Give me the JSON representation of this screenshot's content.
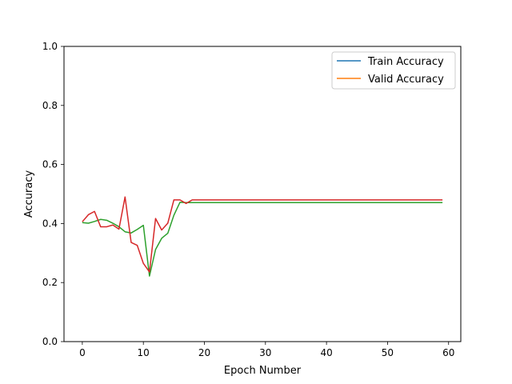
{
  "chart_data": {
    "type": "line",
    "title": "",
    "xlabel": "Epoch Number",
    "ylabel": "Accuracy",
    "xlim": [
      -3,
      62
    ],
    "ylim": [
      0.0,
      1.0
    ],
    "xticks": [
      0,
      10,
      20,
      30,
      40,
      50,
      60
    ],
    "yticks": [
      0.0,
      0.2,
      0.4,
      0.6,
      0.8,
      1.0
    ],
    "xtick_labels": [
      "0",
      "10",
      "20",
      "30",
      "40",
      "50",
      "60"
    ],
    "ytick_labels": [
      "0.0",
      "0.2",
      "0.4",
      "0.6",
      "0.8",
      "1.0"
    ],
    "grid": false,
    "legend_position": "top-right",
    "legend": [
      {
        "name": "Train Accuracy",
        "color": "#1f77b4"
      },
      {
        "name": "Valid Accuracy",
        "color": "#ff7f0e"
      }
    ],
    "series": [
      {
        "color": "#2ca02c",
        "x": [
          0,
          1,
          2,
          3,
          4,
          5,
          6,
          7,
          8,
          9,
          10,
          11,
          12,
          13,
          14,
          15,
          16,
          17,
          18,
          59
        ],
        "values": [
          0.403,
          0.401,
          0.407,
          0.414,
          0.411,
          0.401,
          0.389,
          0.372,
          0.368,
          0.38,
          0.394,
          0.222,
          0.312,
          0.35,
          0.367,
          0.428,
          0.472,
          0.471,
          0.471,
          0.471
        ]
      },
      {
        "color": "#d62728",
        "x": [
          0,
          1,
          2,
          3,
          4,
          5,
          6,
          7,
          8,
          9,
          10,
          11,
          12,
          13,
          14,
          15,
          16,
          17,
          18,
          59
        ],
        "values": [
          0.406,
          0.43,
          0.441,
          0.389,
          0.389,
          0.395,
          0.381,
          0.49,
          0.336,
          0.326,
          0.265,
          0.236,
          0.417,
          0.378,
          0.401,
          0.48,
          0.48,
          0.468,
          0.48,
          0.48
        ]
      }
    ]
  }
}
